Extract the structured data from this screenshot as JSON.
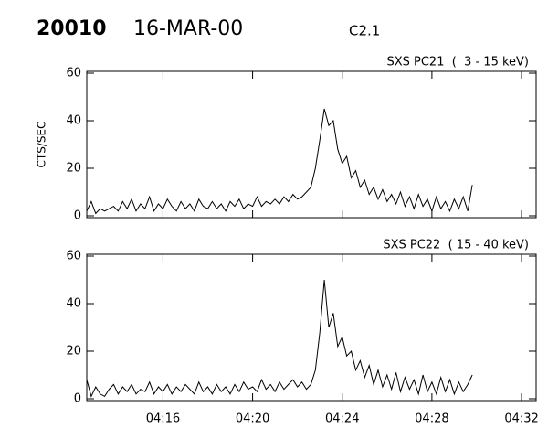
{
  "header": {
    "event": "20010",
    "date": "16-MAR-00",
    "class": "C2.1"
  },
  "chart_data": [
    {
      "type": "line",
      "title": "SXS PC21  (  3 - 15 keV)",
      "ylabel": "CTS/SEC",
      "xlim": [
        252.6,
        272.65
      ],
      "ylim": [
        0,
        60
      ],
      "yticks": [
        0,
        20,
        40,
        60
      ],
      "xticks": [
        256,
        260,
        264,
        268,
        272
      ],
      "series": [
        {
          "color": "#000000",
          "x": [
            252.6,
            252.8,
            253.0,
            253.2,
            253.4,
            253.6,
            253.8,
            254.0,
            254.2,
            254.4,
            254.6,
            254.8,
            255.0,
            255.2,
            255.4,
            255.6,
            255.8,
            256.0,
            256.2,
            256.4,
            256.6,
            256.8,
            257.0,
            257.2,
            257.4,
            257.6,
            257.8,
            258.0,
            258.2,
            258.4,
            258.6,
            258.8,
            259.0,
            259.2,
            259.4,
            259.6,
            259.8,
            260.0,
            260.2,
            260.4,
            260.6,
            260.8,
            261.0,
            261.2,
            261.4,
            261.6,
            261.8,
            262.0,
            262.2,
            262.4,
            262.6,
            262.8,
            263.0,
            263.2,
            263.4,
            263.6,
            263.8,
            264.0,
            264.2,
            264.4,
            264.6,
            264.8,
            265.0,
            265.2,
            265.4,
            265.6,
            265.8,
            266.0,
            266.2,
            266.4,
            266.6,
            266.8,
            267.0,
            267.2,
            267.4,
            267.6,
            267.8,
            268.0,
            268.2,
            268.4,
            268.6,
            268.8,
            269.0,
            269.2,
            269.4,
            269.6,
            269.8
          ],
          "values": [
            2,
            6,
            1,
            3,
            2,
            3,
            4,
            2,
            6,
            3,
            7,
            2,
            5,
            3,
            8,
            2,
            5,
            3,
            7,
            4,
            2,
            6,
            3,
            5,
            2,
            7,
            4,
            3,
            6,
            3,
            5,
            2,
            6,
            4,
            7,
            3,
            5,
            4,
            8,
            4,
            6,
            5,
            7,
            5,
            8,
            6,
            9,
            7,
            8,
            10,
            12,
            20,
            32,
            45,
            38,
            40,
            28,
            22,
            25,
            16,
            19,
            12,
            15,
            9,
            12,
            7,
            11,
            6,
            9,
            5,
            10,
            4,
            8,
            3,
            9,
            4,
            7,
            2,
            8,
            3,
            6,
            2,
            7,
            3,
            8,
            2,
            13
          ]
        }
      ]
    },
    {
      "type": "line",
      "title": "SXS PC22  ( 15 - 40 keV)",
      "xlim": [
        252.6,
        272.65
      ],
      "ylim": [
        0,
        60
      ],
      "yticks": [
        0,
        20,
        40,
        60
      ],
      "xticks": [
        {
          "value": 256,
          "label": "04:16"
        },
        {
          "value": 260,
          "label": "04:20"
        },
        {
          "value": 264,
          "label": "04:24"
        },
        {
          "value": 268,
          "label": "04:28"
        },
        {
          "value": 272,
          "label": "04:32"
        }
      ],
      "series": [
        {
          "color": "#000000",
          "x": [
            252.6,
            252.8,
            253.0,
            253.2,
            253.4,
            253.6,
            253.8,
            254.0,
            254.2,
            254.4,
            254.6,
            254.8,
            255.0,
            255.2,
            255.4,
            255.6,
            255.8,
            256.0,
            256.2,
            256.4,
            256.6,
            256.8,
            257.0,
            257.2,
            257.4,
            257.6,
            257.8,
            258.0,
            258.2,
            258.4,
            258.6,
            258.8,
            259.0,
            259.2,
            259.4,
            259.6,
            259.8,
            260.0,
            260.2,
            260.4,
            260.6,
            260.8,
            261.0,
            261.2,
            261.4,
            261.6,
            261.8,
            262.0,
            262.2,
            262.4,
            262.6,
            262.8,
            263.0,
            263.2,
            263.4,
            263.6,
            263.8,
            264.0,
            264.2,
            264.4,
            264.6,
            264.8,
            265.0,
            265.2,
            265.4,
            265.6,
            265.8,
            266.0,
            266.2,
            266.4,
            266.6,
            266.8,
            267.0,
            267.2,
            267.4,
            267.6,
            267.8,
            268.0,
            268.2,
            268.4,
            268.6,
            268.8,
            269.0,
            269.2,
            269.4,
            269.6,
            269.8
          ],
          "values": [
            8,
            1,
            5,
            2,
            1,
            4,
            6,
            2,
            5,
            3,
            6,
            2,
            4,
            3,
            7,
            2,
            5,
            3,
            6,
            2,
            5,
            3,
            6,
            4,
            2,
            7,
            3,
            5,
            2,
            6,
            3,
            5,
            2,
            6,
            3,
            7,
            4,
            5,
            3,
            8,
            4,
            6,
            3,
            7,
            4,
            6,
            8,
            5,
            7,
            4,
            6,
            12,
            28,
            50,
            30,
            36,
            22,
            26,
            18,
            20,
            12,
            16,
            9,
            14,
            6,
            12,
            5,
            10,
            4,
            11,
            3,
            9,
            4,
            8,
            2,
            10,
            3,
            7,
            2,
            9,
            3,
            8,
            2,
            7,
            3,
            6,
            10
          ]
        }
      ]
    }
  ]
}
